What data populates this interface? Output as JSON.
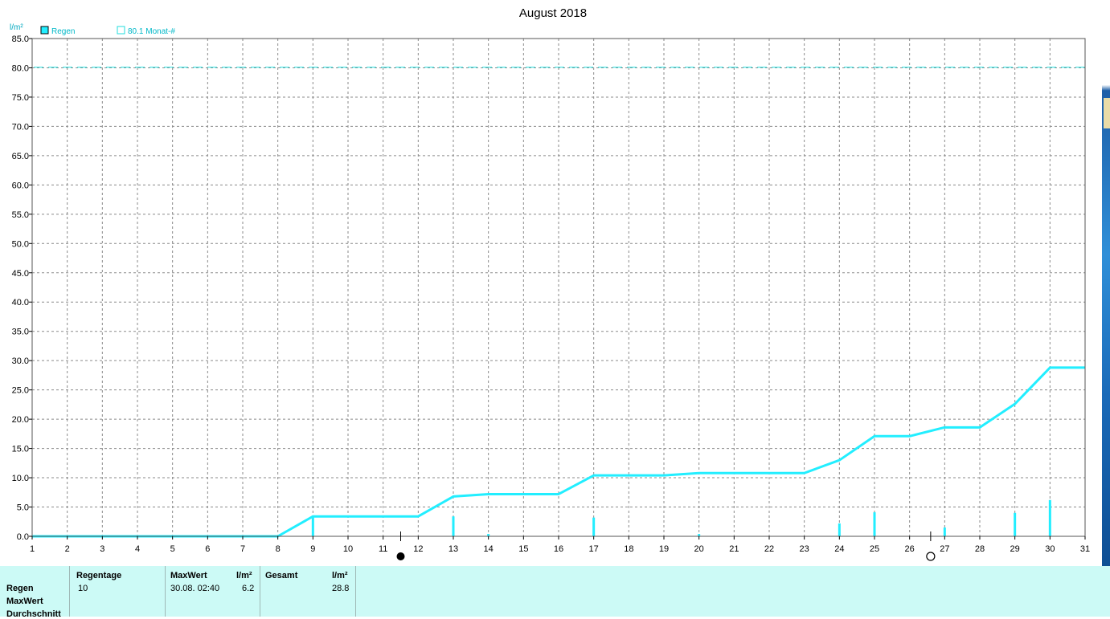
{
  "chart_data": {
    "type": "line",
    "title": "August 2018",
    "y_unit": "l/m²",
    "ylim": [
      0,
      85
    ],
    "y_ticks": [
      "0.0",
      "5.0",
      "10.0",
      "15.0",
      "20.0",
      "25.0",
      "30.0",
      "35.0",
      "40.0",
      "45.0",
      "50.0",
      "55.0",
      "60.0",
      "65.0",
      "70.0",
      "75.0",
      "80.0",
      "85.0"
    ],
    "xlim": [
      1,
      31
    ],
    "x_ticks": [
      "1",
      "2",
      "3",
      "4",
      "5",
      "6",
      "7",
      "8",
      "9",
      "10",
      "11",
      "12",
      "13",
      "14",
      "15",
      "16",
      "17",
      "18",
      "19",
      "20",
      "21",
      "22",
      "23",
      "24",
      "25",
      "26",
      "27",
      "28",
      "29",
      "30",
      "31"
    ],
    "grid": true,
    "legend": [
      {
        "name": "Regen",
        "color": "#22eeff",
        "filled": true
      },
      {
        "name": "80.1 Monat-#",
        "color": "#22eeff",
        "filled": false
      }
    ],
    "reference_line": {
      "value": 80.1,
      "color": "#22dddd"
    },
    "cumulative": {
      "name": "Regen",
      "color": "#22eeff",
      "x": [
        1,
        8,
        9,
        12,
        13,
        14,
        16,
        17,
        19,
        20,
        23,
        24,
        25,
        26,
        27,
        28,
        29,
        30,
        31
      ],
      "y": [
        0,
        0,
        3.4,
        3.4,
        6.8,
        7.2,
        7.2,
        10.4,
        10.4,
        10.8,
        10.8,
        13.0,
        17.1,
        17.1,
        18.6,
        18.6,
        22.6,
        28.8,
        28.8
      ]
    },
    "daily_bars": {
      "x": [
        9,
        13,
        14,
        17,
        20,
        24,
        25,
        27,
        29,
        30
      ],
      "y": [
        3.4,
        3.4,
        0.4,
        3.2,
        0.4,
        2.2,
        4.1,
        1.5,
        4.0,
        6.2
      ],
      "color": "#22eeff"
    },
    "moon_phases": [
      {
        "day": 11.5,
        "phase": "new"
      },
      {
        "day": 26.6,
        "phase": "full"
      }
    ]
  },
  "table": {
    "row_labels": [
      "Regen",
      "MaxWert",
      "Durchschnitt"
    ],
    "regentage_header": "Regentage",
    "regentage_value": "10",
    "maxwert_header": "MaxWert",
    "maxwert_unit": "l/m²",
    "maxwert_date": "30.08.  02:40",
    "maxwert_value": "6.2",
    "gesamt_header": "Gesamt",
    "gesamt_unit": "l/m²",
    "gesamt_value": "28.8"
  }
}
